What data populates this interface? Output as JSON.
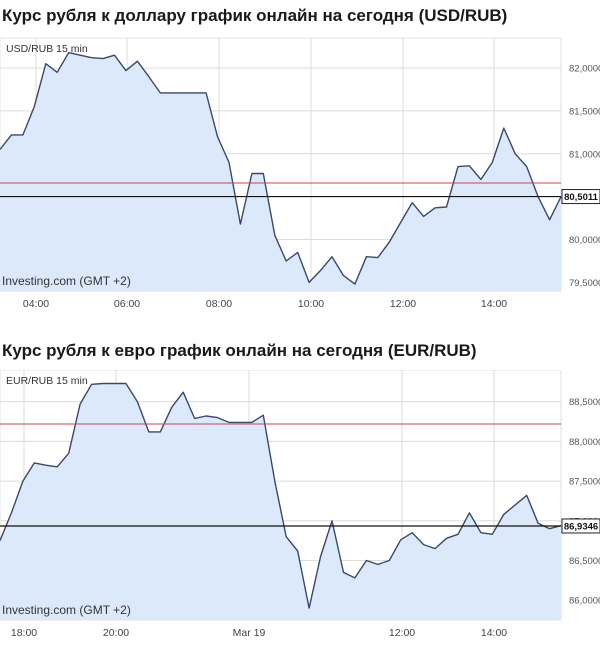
{
  "headings": {
    "usd": "Курс рубля к доллару график онлайн на сегодня (USD/RUB)",
    "eur": "Курс рубля к евро график онлайн на сегодня (EUR/RUB)"
  },
  "colors": {
    "line": "#39496b",
    "fill": "#dbe9fb",
    "grid": "#dcdcdc",
    "ref_line": "#c94848",
    "current_line": "#111111"
  },
  "chart_data": [
    {
      "type": "area",
      "title": "USD/RUB 15 min",
      "source": "Investing.com (GMT +2)",
      "x_ticks": [
        "04:00",
        "06:00",
        "08:00",
        "10:00",
        "12:00",
        "14:00"
      ],
      "y_ticks": [
        "82,0000",
        "81,5000",
        "81,0000",
        "80,5000",
        "80,0000",
        "79,5000"
      ],
      "y_tick_values": [
        82.0,
        81.5,
        81.0,
        80.5,
        80.0,
        79.5
      ],
      "ylim": [
        79.4,
        82.35
      ],
      "reference_value": 80.66,
      "current_value": 80.5011,
      "current_label": "80,5011",
      "series": [
        {
          "values": [
            81.05,
            81.22,
            81.22,
            81.55,
            82.05,
            81.95,
            82.18,
            82.15,
            82.12,
            82.11,
            82.15,
            81.97,
            82.08,
            81.9,
            81.71,
            81.71,
            81.71,
            81.71,
            81.71,
            81.2,
            80.9,
            80.18,
            80.77,
            80.77,
            80.05,
            79.75,
            79.85,
            79.5,
            79.64,
            79.8,
            79.58,
            79.48,
            79.8,
            79.79,
            79.97,
            80.2,
            80.43,
            80.27,
            80.37,
            80.38,
            80.85,
            80.86,
            80.7,
            80.9,
            81.3,
            81.0,
            80.85,
            80.5,
            80.23,
            80.5
          ]
        }
      ]
    },
    {
      "type": "area",
      "title": "EUR/RUB 15 min",
      "source": "Investing.com (GMT +2)",
      "x_ticks": [
        "18:00",
        "20:00",
        "Mar 19",
        "12:00",
        "14:00"
      ],
      "y_ticks": [
        "88,5000",
        "88,0000",
        "87,5000",
        "87,0000",
        "86,5000",
        "86,0000"
      ],
      "y_tick_values": [
        88.5,
        88.0,
        87.5,
        87.0,
        86.5,
        86.0
      ],
      "ylim": [
        85.75,
        88.9
      ],
      "reference_value": 88.22,
      "current_value": 86.9346,
      "current_label": "86,9346",
      "series": [
        {
          "values": [
            86.75,
            87.1,
            87.5,
            87.73,
            87.7,
            87.68,
            87.85,
            88.47,
            88.72,
            88.73,
            88.73,
            88.73,
            88.5,
            88.12,
            88.12,
            88.43,
            88.62,
            88.29,
            88.32,
            88.3,
            88.24,
            88.24,
            88.24,
            88.33,
            87.5,
            86.8,
            86.62,
            85.9,
            86.55,
            87.0,
            86.35,
            86.28,
            86.5,
            86.45,
            86.5,
            86.76,
            86.85,
            86.7,
            86.65,
            86.78,
            86.83,
            87.1,
            86.85,
            86.83,
            87.08,
            87.2,
            87.32,
            86.97,
            86.9,
            86.94
          ]
        }
      ]
    }
  ]
}
